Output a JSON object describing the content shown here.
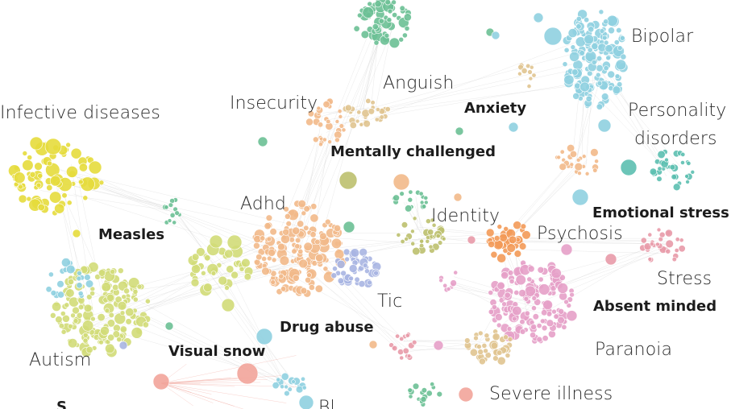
{
  "labels": {
    "bipolar": "Bipolar",
    "anguish": "Anguish",
    "insecurity": "Insecurity",
    "anxiety": "Anxiety",
    "infective_diseases": "Infective diseases",
    "personality_disorders_1": "Personality",
    "personality_disorders_2": "disorders",
    "mentally_challenged": "Mentally challenged",
    "adhd": "Adhd",
    "identity": "Identity",
    "emotional_stress": "Emotional stress",
    "measles": "Measles",
    "psychosis": "Psychosis",
    "stress": "Stress",
    "tic": "Tic",
    "absent_minded": "Absent minded",
    "drug_abuse": "Drug abuse",
    "autism": "Autism",
    "visual_snow": "Visual snow",
    "paranoia": "Paranoia",
    "severe_illness": "Severe illness",
    "cut_left": "S",
    "cut_bottom": "Bl"
  },
  "colors": {
    "yellow": "#e6dc3c",
    "yellow_green": "#d2dc78",
    "teal_green": "#6cc095",
    "light_blue": "#8fd0e0",
    "teal": "#5cbfb0",
    "peach": "#f2b98a",
    "orange": "#f39a58",
    "lavender": "#a9b5e2",
    "pink": "#e6a0c8",
    "rose": "#e89aa8",
    "tan": "#e0c490",
    "olive": "#bcc06e",
    "salmon": "#f2a49a",
    "edge": "#cfcfcf"
  }
}
